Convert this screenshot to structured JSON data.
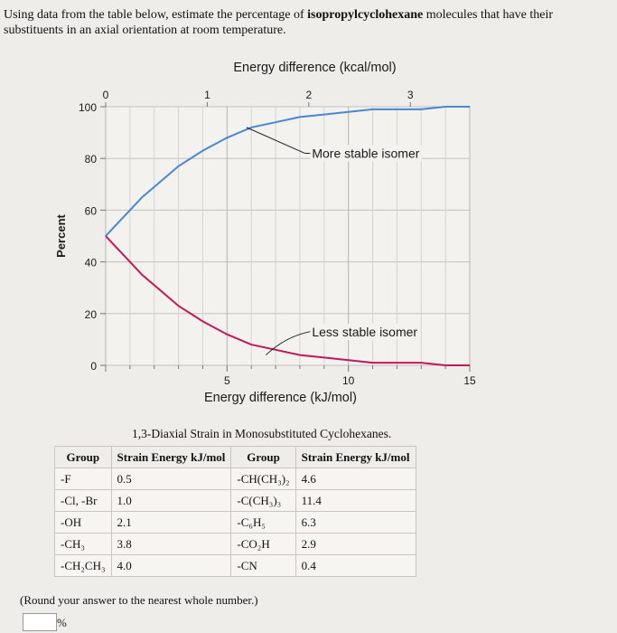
{
  "question": {
    "prefix": "Using data from the table below, estimate the percentage of ",
    "compound": "isopropylcyclohexane",
    "suffix": " molecules that have their substituents in an axial orientation at room temperature."
  },
  "chart_data": {
    "type": "line",
    "title": "",
    "xlabel": "Energy difference (kJ/mol)",
    "xlabel_top": "Energy difference (kcal/mol)",
    "ylabel": "Percent",
    "xlim": [
      0,
      15
    ],
    "ylim": [
      0,
      100
    ],
    "x_ticks": [
      5,
      10,
      15
    ],
    "x_top_ticks": [
      0,
      1,
      2,
      3
    ],
    "y_ticks": [
      0,
      20,
      40,
      60,
      80,
      100
    ],
    "grid": true,
    "series": [
      {
        "name": "More stable isomer",
        "color": "#4a86d4",
        "x": [
          0,
          0.5,
          1,
          1.5,
          2,
          3,
          4,
          5,
          6,
          7,
          8,
          9,
          10,
          11,
          12,
          13,
          14,
          15
        ],
        "y": [
          50,
          55,
          60,
          65,
          69,
          77,
          83,
          88,
          92,
          94,
          96,
          97,
          98,
          99,
          99,
          99,
          100,
          100
        ]
      },
      {
        "name": "Less stable isomer",
        "color": "#c2185b",
        "x": [
          0,
          0.5,
          1,
          1.5,
          2,
          3,
          4,
          5,
          6,
          7,
          8,
          9,
          10,
          11,
          12,
          13,
          14,
          15
        ],
        "y": [
          50,
          45,
          40,
          35,
          31,
          23,
          17,
          12,
          8,
          6,
          4,
          3,
          2,
          1,
          1,
          1,
          0,
          0
        ]
      }
    ],
    "annotations": [
      {
        "text": "More stable isomer",
        "series": 0
      },
      {
        "text": "Less stable isomer",
        "series": 1
      }
    ]
  },
  "table": {
    "title": "1,3-Diaxial Strain in Monosubstituted Cyclohexanes.",
    "headers": [
      "Group",
      "Strain Energy kJ/mol",
      "Group",
      "Strain Energy kJ/mol"
    ],
    "rows": [
      [
        "-F",
        "0.5",
        "-CH(CH₃)₂",
        "4.6"
      ],
      [
        "-Cl, -Br",
        "1.0",
        "-C(CH₃)₃",
        "11.4"
      ],
      [
        "-OH",
        "2.1",
        "-C₆H₅",
        "6.3"
      ],
      [
        "-CH₃",
        "3.8",
        "-CO₂H",
        "2.9"
      ],
      [
        "-CH₂CH₃",
        "4.0",
        "-CN",
        "0.4"
      ]
    ]
  },
  "note": "(Round your answer to the nearest whole number.)",
  "answer": {
    "value": "",
    "unit": "%"
  }
}
